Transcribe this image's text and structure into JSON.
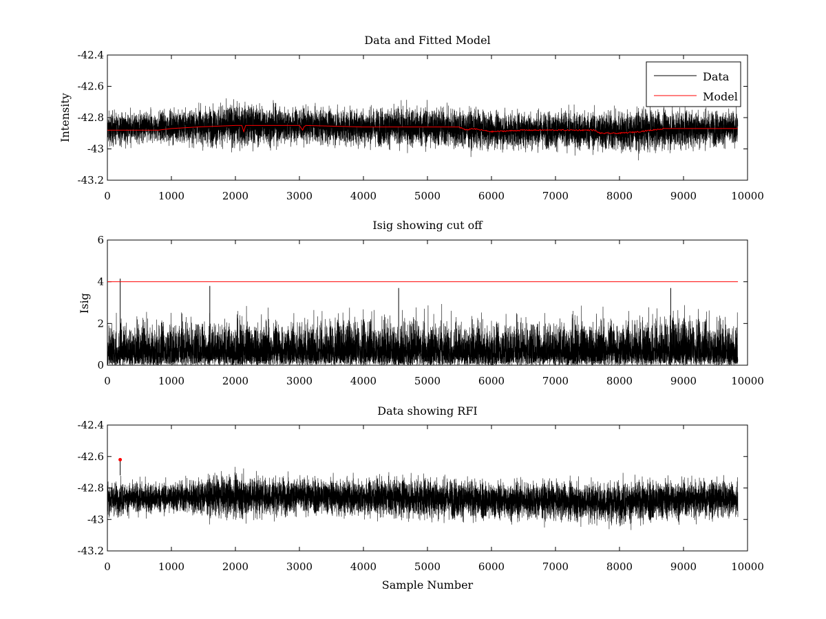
{
  "chart_data": [
    {
      "type": "line",
      "title": "Data and Fitted Model",
      "xlabel": "",
      "ylabel": "Intensity",
      "xlim": [
        0,
        10000
      ],
      "ylim": [
        -43.2,
        -42.4
      ],
      "xticks": [
        "0",
        "1000",
        "2000",
        "3000",
        "4000",
        "5000",
        "6000",
        "7000",
        "8000",
        "9000",
        "10000"
      ],
      "yticks": [
        "-42.4",
        "-42.6",
        "-42.8",
        "-43",
        "-43.2"
      ],
      "grid": false,
      "legend": {
        "placement": "top-right",
        "entries": [
          "Data",
          "Model"
        ]
      },
      "series": [
        {
          "name": "Data",
          "color": "#000000",
          "n_samples": 9850,
          "envelope": {
            "x": [
              0,
              1000,
              2000,
              3000,
              4000,
              5000,
              6000,
              7000,
              8000,
              9000,
              9850
            ],
            "center": [
              -42.87,
              -42.86,
              -42.85,
              -42.85,
              -42.86,
              -42.86,
              -42.88,
              -42.88,
              -42.89,
              -42.87,
              -42.87
            ],
            "low": [
              -43.0,
              -43.0,
              -43.06,
              -43.02,
              -43.04,
              -43.04,
              -43.08,
              -43.06,
              -43.08,
              -43.08,
              -43.0
            ],
            "high": [
              -42.7,
              -42.72,
              -42.66,
              -42.7,
              -42.7,
              -42.66,
              -42.74,
              -42.72,
              -42.7,
              -42.72,
              -42.7
            ]
          }
        },
        {
          "name": "Model",
          "color": "#ff0000",
          "x": [
            0,
            800,
            1000,
            1400,
            2000,
            2100,
            2130,
            2160,
            2200,
            3000,
            3050,
            3070,
            3100,
            4000,
            5000,
            5500,
            5600,
            5700,
            6000,
            6500,
            7000,
            7600,
            7700,
            8000,
            8300,
            8700,
            9000,
            9850
          ],
          "y": [
            -42.88,
            -42.88,
            -42.87,
            -42.86,
            -42.85,
            -42.85,
            -42.89,
            -42.85,
            -42.85,
            -42.85,
            -42.88,
            -42.86,
            -42.85,
            -42.86,
            -42.86,
            -42.86,
            -42.88,
            -42.87,
            -42.89,
            -42.88,
            -42.88,
            -42.88,
            -42.9,
            -42.9,
            -42.89,
            -42.87,
            -42.87,
            -42.87
          ]
        }
      ]
    },
    {
      "type": "line",
      "title": "Isig showing cut off",
      "xlabel": "",
      "ylabel": "Isig",
      "xlim": [
        0,
        10000
      ],
      "ylim": [
        0,
        6
      ],
      "xticks": [
        "0",
        "1000",
        "2000",
        "3000",
        "4000",
        "5000",
        "6000",
        "7000",
        "8000",
        "9000",
        "10000"
      ],
      "yticks": [
        "6",
        "4",
        "2",
        "0"
      ],
      "grid": false,
      "series": [
        {
          "color": "#000000",
          "n_samples": 9850,
          "envelope": {
            "x": [
              0,
              1000,
              2000,
              3000,
              4000,
              5000,
              6000,
              7000,
              8000,
              9000,
              9850
            ],
            "low": [
              0,
              0,
              0,
              0,
              0,
              0,
              0,
              0,
              0,
              0,
              0
            ],
            "high": [
              2.8,
              2.9,
              3.0,
              2.9,
              3.1,
              3.0,
              2.8,
              3.0,
              3.0,
              3.2,
              2.9
            ]
          },
          "spikes": [
            {
              "x": 200,
              "y": 4.15
            },
            {
              "x": 1600,
              "y": 3.8
            },
            {
              "x": 4550,
              "y": 3.7
            },
            {
              "x": 8800,
              "y": 3.7
            }
          ]
        },
        {
          "color": "#ff0000",
          "x": [
            0,
            9850
          ],
          "y": [
            4,
            4
          ]
        }
      ]
    },
    {
      "type": "line",
      "title": "Data showing RFI",
      "xlabel": "Sample Number",
      "ylabel": "",
      "xlim": [
        0,
        10000
      ],
      "ylim": [
        -43.2,
        -42.4
      ],
      "xticks": [
        "0",
        "1000",
        "2000",
        "3000",
        "4000",
        "5000",
        "6000",
        "7000",
        "8000",
        "9000",
        "10000"
      ],
      "yticks": [
        "-42.4",
        "-42.6",
        "-42.8",
        "-43",
        "-43.2"
      ],
      "grid": false,
      "series": [
        {
          "color": "#000000",
          "n_samples": 9850,
          "envelope": {
            "x": [
              0,
              1000,
              2000,
              3000,
              4000,
              5000,
              6000,
              7000,
              8000,
              9000,
              9850
            ],
            "center": [
              -42.87,
              -42.86,
              -42.85,
              -42.85,
              -42.86,
              -42.86,
              -42.88,
              -42.88,
              -42.89,
              -42.87,
              -42.87
            ],
            "low": [
              -43.0,
              -43.0,
              -43.06,
              -43.02,
              -43.04,
              -43.04,
              -43.08,
              -43.06,
              -43.08,
              -43.08,
              -43.0
            ],
            "high": [
              -42.7,
              -42.72,
              -42.66,
              -42.7,
              -42.7,
              -42.66,
              -42.74,
              -42.72,
              -42.7,
              -42.72,
              -42.7
            ]
          }
        },
        {
          "color": "#ff0000",
          "marker": "dot",
          "points": [
            {
              "x": 200,
              "y": -42.62
            }
          ]
        }
      ]
    }
  ]
}
